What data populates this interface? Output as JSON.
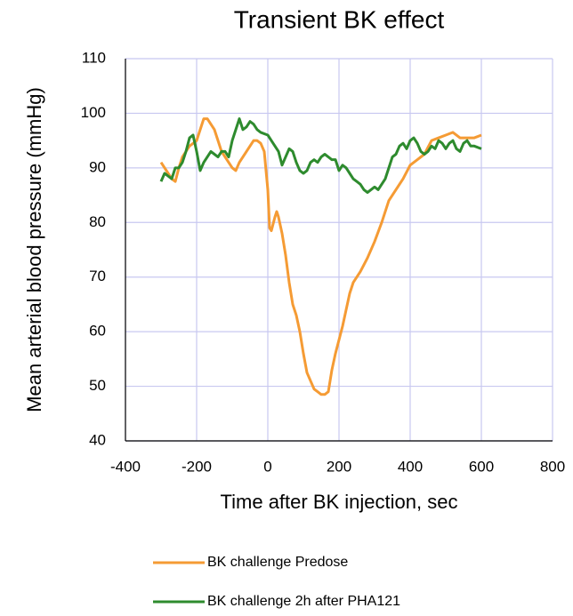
{
  "chart_data": {
    "type": "line",
    "title": "Transient BK effect",
    "x_label": "Time after BK injection, sec",
    "y_label": "Mean arterial blood pressure (mmHg)",
    "xlim": [
      -400,
      800
    ],
    "xticks": [
      -400,
      -200,
      0,
      200,
      400,
      600,
      800
    ],
    "ylim": [
      40,
      110
    ],
    "yticks": [
      40,
      50,
      60,
      70,
      80,
      90,
      100,
      110
    ],
    "grid": true,
    "legend": "bottom",
    "series": [
      {
        "name": "BK challenge Predose",
        "color": "#f59b34",
        "x": [
          -300,
          -290,
          -280,
          -270,
          -260,
          -250,
          -240,
          -220,
          -200,
          -190,
          -180,
          -170,
          -160,
          -150,
          -140,
          -130,
          -120,
          -100,
          -90,
          -80,
          -60,
          -40,
          -30,
          -20,
          -10,
          0,
          5,
          10,
          20,
          25,
          30,
          40,
          50,
          60,
          70,
          80,
          90,
          100,
          110,
          120,
          130,
          140,
          150,
          160,
          170,
          180,
          190,
          200,
          210,
          220,
          230,
          240,
          260,
          280,
          300,
          320,
          340,
          360,
          380,
          400,
          420,
          440,
          460,
          480,
          500,
          520,
          540,
          560,
          580,
          600
        ],
        "values": [
          91,
          90,
          89,
          88,
          87.5,
          90,
          92,
          94,
          95,
          97,
          99,
          99,
          98,
          97,
          95,
          93,
          92,
          90,
          89.5,
          91,
          93,
          95,
          95,
          94.5,
          93,
          86,
          79,
          78.5,
          81,
          82,
          81,
          78,
          74,
          69,
          65,
          63,
          60,
          56,
          52.5,
          51,
          49.5,
          49,
          48.5,
          48.5,
          49,
          53,
          56,
          58.5,
          61,
          64,
          67,
          69,
          71,
          73.5,
          76.5,
          80,
          84,
          86,
          88,
          90.5,
          91.5,
          92.5,
          95,
          95.5,
          96,
          96.5,
          95.5,
          95.5,
          95.5,
          96
        ]
      },
      {
        "name": "BK challenge 2h after PHA121",
        "color": "#2e8b2e",
        "x": [
          -300,
          -290,
          -280,
          -270,
          -260,
          -250,
          -240,
          -230,
          -220,
          -210,
          -200,
          -190,
          -180,
          -170,
          -160,
          -150,
          -140,
          -130,
          -120,
          -110,
          -100,
          -90,
          -80,
          -70,
          -60,
          -50,
          -40,
          -30,
          -20,
          0,
          10,
          20,
          30,
          40,
          50,
          60,
          70,
          80,
          90,
          100,
          110,
          120,
          130,
          140,
          150,
          160,
          170,
          180,
          190,
          200,
          210,
          220,
          230,
          240,
          250,
          260,
          270,
          280,
          290,
          300,
          310,
          320,
          330,
          340,
          350,
          360,
          370,
          380,
          390,
          400,
          410,
          420,
          430,
          440,
          450,
          460,
          470,
          480,
          490,
          500,
          510,
          520,
          530,
          540,
          550,
          560,
          570,
          580,
          600
        ],
        "values": [
          87.5,
          89,
          88.5,
          88,
          90,
          90,
          91,
          93,
          95.5,
          96,
          93,
          89.5,
          91,
          92,
          93,
          92.5,
          92,
          93,
          93,
          92,
          95,
          97,
          99,
          97,
          97.5,
          98.5,
          98,
          97,
          96.5,
          96,
          95,
          94,
          93,
          90.5,
          92,
          93.5,
          93,
          91,
          89.5,
          89,
          89.5,
          91,
          91.5,
          91,
          92,
          92.5,
          92,
          91.5,
          91.5,
          89.5,
          90.5,
          90,
          89,
          88,
          87.5,
          87,
          86,
          85.5,
          86,
          86.5,
          86,
          87,
          88,
          90,
          92,
          92.5,
          94,
          94.5,
          93.5,
          95,
          95.5,
          94.5,
          93,
          92.5,
          93,
          94,
          93.5,
          95,
          94.5,
          93.5,
          94.5,
          95,
          93.5,
          93,
          94.5,
          95,
          94,
          94,
          93.5
        ]
      }
    ]
  }
}
